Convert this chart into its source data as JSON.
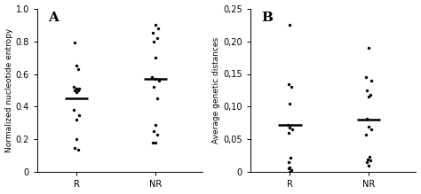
{
  "panel_A": {
    "label": "A",
    "ylabel": "Normalized nucleotide entropy",
    "ylim": [
      0,
      1.0
    ],
    "yticks": [
      0.0,
      0.2,
      0.4,
      0.6,
      0.8,
      1.0
    ],
    "ytick_labels": [
      "0",
      "0.2",
      "0.4",
      "0.6",
      "0.8",
      "1.0"
    ],
    "categories": [
      "R",
      "NR"
    ],
    "R_data": [
      0.79,
      0.65,
      0.63,
      0.52,
      0.51,
      0.51,
      0.5,
      0.5,
      0.49,
      0.38,
      0.35,
      0.32,
      0.2,
      0.15,
      0.14
    ],
    "NR_data": [
      0.9,
      0.88,
      0.85,
      0.82,
      0.8,
      0.7,
      0.58,
      0.57,
      0.56,
      0.52,
      0.45,
      0.29,
      0.25,
      0.23,
      0.18,
      0.18
    ],
    "R_median": 0.45,
    "NR_median": 0.57,
    "R_jitter": [
      -0.02,
      0.0,
      0.02,
      -0.04,
      0.0,
      0.03,
      -0.02,
      0.02,
      0.0,
      -0.03,
      0.03,
      0.0,
      0.0,
      -0.02,
      0.02
    ],
    "NR_jitter": [
      0.0,
      0.03,
      -0.03,
      0.02,
      -0.02,
      0.0,
      -0.04,
      0.0,
      0.04,
      -0.02,
      0.02,
      0.0,
      -0.02,
      0.02,
      0.0,
      -0.03
    ]
  },
  "panel_B": {
    "label": "B",
    "ylabel": "Average genetic distances",
    "ylim": [
      0,
      0.25
    ],
    "yticks": [
      0.0,
      0.05,
      0.1,
      0.15,
      0.2,
      0.25
    ],
    "ytick_labels": [
      "0",
      "0,05",
      "0,10",
      "0,15",
      "0,20",
      "0,25"
    ],
    "categories": [
      "R",
      "NR"
    ],
    "R_data": [
      0.225,
      0.135,
      0.13,
      0.105,
      0.072,
      0.068,
      0.065,
      0.06,
      0.022,
      0.015,
      0.008,
      0.006,
      0.003,
      0.001
    ],
    "NR_data": [
      0.19,
      0.145,
      0.14,
      0.125,
      0.118,
      0.115,
      0.082,
      0.07,
      0.065,
      0.058,
      0.023,
      0.02,
      0.018,
      0.015,
      0.01
    ],
    "R_median": 0.072,
    "NR_median": 0.08,
    "R_jitter": [
      0.0,
      -0.02,
      0.02,
      0.0,
      -0.03,
      0.0,
      0.03,
      -0.02,
      0.01,
      -0.01,
      0.0,
      -0.02,
      0.02,
      0.0
    ],
    "NR_jitter": [
      0.0,
      -0.03,
      0.03,
      -0.02,
      0.02,
      0.0,
      -0.02,
      0.0,
      0.03,
      -0.03,
      0.01,
      -0.01,
      0.02,
      -0.02,
      0.0
    ]
  },
  "dot_color": "#000000",
  "median_color": "#000000",
  "dot_size": 6,
  "median_linewidth": 1.8,
  "median_halfwidth": 0.15,
  "background_color": "#ffffff",
  "spine_color": "#000000"
}
